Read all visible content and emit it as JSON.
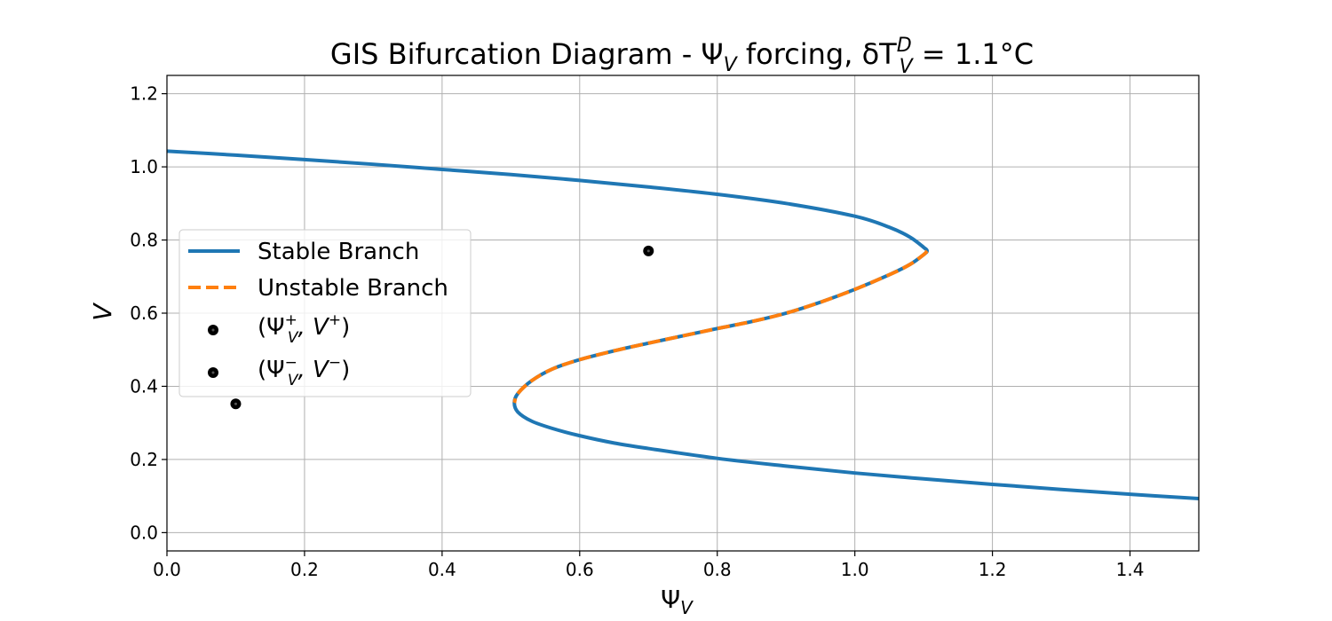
{
  "chart_data": {
    "type": "line",
    "title": {
      "prefix": "GIS Bifurcation Diagram - Ψ",
      "prefix_sub": "V",
      "middle": " forcing, δT",
      "middle_sup": "D",
      "middle_sub": "V",
      "suffix": " = 1.1°C"
    },
    "xlabel": {
      "main": "Ψ",
      "sub": "V"
    },
    "ylabel": "V",
    "xlim": [
      0.0,
      1.5
    ],
    "ylim": [
      -0.05,
      1.25
    ],
    "xticks": [
      0.0,
      0.2,
      0.4,
      0.6,
      0.8,
      1.0,
      1.2,
      1.4
    ],
    "yticks": [
      0.0,
      0.2,
      0.4,
      0.6,
      0.8,
      1.0,
      1.2
    ],
    "xtick_labels": [
      "0.0",
      "0.2",
      "0.4",
      "0.6",
      "0.8",
      "1.0",
      "1.2",
      "1.4"
    ],
    "ytick_labels": [
      "0.0",
      "0.2",
      "0.4",
      "0.6",
      "0.8",
      "1.0",
      "1.2"
    ],
    "grid": true,
    "legend_placement": "center-left",
    "colors": {
      "stable": "#1f77b4",
      "unstable": "#ff7f0e",
      "points": "#000000",
      "grid": "#b0b0b0"
    },
    "series": [
      {
        "name": "Stable Branch",
        "style": "solid",
        "points": [
          [
            0.0,
            1.043
          ],
          [
            0.1,
            1.032
          ],
          [
            0.2,
            1.02
          ],
          [
            0.3,
            1.007
          ],
          [
            0.4,
            0.993
          ],
          [
            0.5,
            0.979
          ],
          [
            0.6,
            0.963
          ],
          [
            0.7,
            0.945
          ],
          [
            0.8,
            0.925
          ],
          [
            0.9,
            0.9
          ],
          [
            1.0,
            0.865
          ],
          [
            1.05,
            0.835
          ],
          [
            1.08,
            0.808
          ],
          [
            1.1,
            0.78
          ],
          [
            1.105,
            0.77
          ],
          [
            1.1,
            0.76
          ],
          [
            1.08,
            0.733
          ],
          [
            1.05,
            0.705
          ],
          [
            1.0,
            0.665
          ],
          [
            0.95,
            0.63
          ],
          [
            0.9,
            0.6
          ],
          [
            0.85,
            0.577
          ],
          [
            0.8,
            0.558
          ],
          [
            0.75,
            0.538
          ],
          [
            0.7,
            0.518
          ],
          [
            0.65,
            0.497
          ],
          [
            0.6,
            0.473
          ],
          [
            0.56,
            0.447
          ],
          [
            0.53,
            0.415
          ],
          [
            0.51,
            0.38
          ],
          [
            0.505,
            0.355
          ],
          [
            0.51,
            0.33
          ],
          [
            0.53,
            0.305
          ],
          [
            0.56,
            0.285
          ],
          [
            0.6,
            0.265
          ],
          [
            0.65,
            0.245
          ],
          [
            0.7,
            0.23
          ],
          [
            0.8,
            0.203
          ],
          [
            0.9,
            0.182
          ],
          [
            1.0,
            0.163
          ],
          [
            1.1,
            0.147
          ],
          [
            1.2,
            0.132
          ],
          [
            1.3,
            0.118
          ],
          [
            1.4,
            0.105
          ],
          [
            1.5,
            0.093
          ]
        ]
      },
      {
        "name": "Unstable Branch",
        "style": "dashed",
        "points": [
          [
            1.105,
            0.77
          ],
          [
            1.1,
            0.76
          ],
          [
            1.08,
            0.733
          ],
          [
            1.05,
            0.705
          ],
          [
            1.0,
            0.665
          ],
          [
            0.95,
            0.63
          ],
          [
            0.9,
            0.6
          ],
          [
            0.85,
            0.577
          ],
          [
            0.8,
            0.558
          ],
          [
            0.75,
            0.538
          ],
          [
            0.7,
            0.518
          ],
          [
            0.65,
            0.497
          ],
          [
            0.6,
            0.473
          ],
          [
            0.56,
            0.447
          ],
          [
            0.53,
            0.415
          ],
          [
            0.51,
            0.38
          ],
          [
            0.505,
            0.355
          ]
        ]
      }
    ],
    "scatter": [
      {
        "name": "(Ψ_V^+, V^+)",
        "label_main": "(Ψ",
        "label_sub": "V",
        "label_sup": "+",
        "label_mid": ", V",
        "label_sup2": "+",
        "label_end": ")",
        "x": 0.7,
        "y": 0.77
      },
      {
        "name": "(Ψ_V^-, V^-)",
        "label_main": "(Ψ",
        "label_sub": "V",
        "label_sup": "−",
        "label_mid": ", V",
        "label_sup2": "−",
        "label_end": ")",
        "x": 0.1,
        "y": 0.352
      }
    ]
  }
}
